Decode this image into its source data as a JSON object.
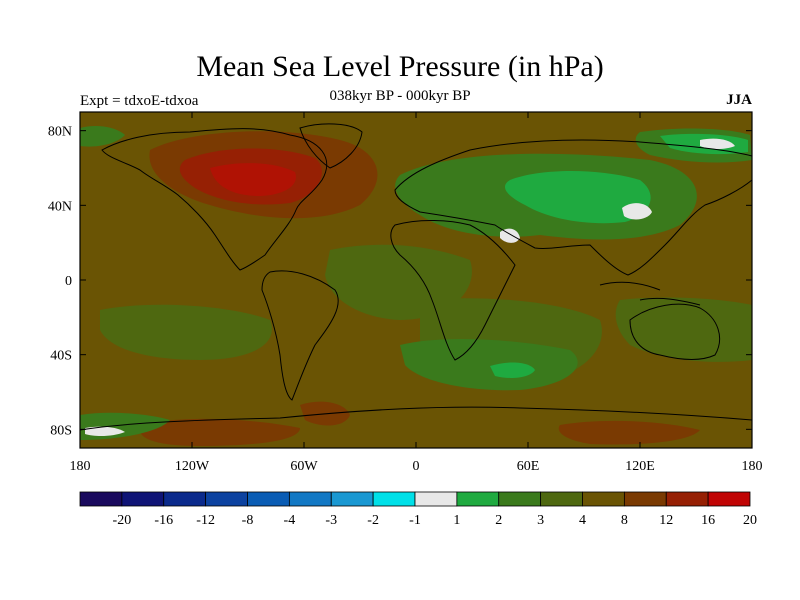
{
  "title": "Mean Sea Level Pressure (in hPa)",
  "subtitle": "038kyr BP - 000kyr BP",
  "experiment": "Expt = tdxoE-tdxoa",
  "season": "JJA",
  "map": {
    "lon_ticks": [
      "180",
      "120W",
      "60W",
      "0",
      "60E",
      "120E",
      "180"
    ],
    "lat_ticks": [
      "80N",
      "40N",
      "0",
      "40S",
      "80S"
    ],
    "lon_range": [
      -180,
      180
    ],
    "lat_range": [
      -90,
      90
    ],
    "background_class": "4 to 8"
  },
  "colorbar": {
    "labels": [
      "-20",
      "-16",
      "-12",
      "-8",
      "-4",
      "-3",
      "-2",
      "-1",
      "1",
      "2",
      "3",
      "4",
      "8",
      "12",
      "16",
      "20"
    ],
    "colors": [
      "#1a0a5e",
      "#0f1476",
      "#0b2a8c",
      "#0c42a0",
      "#0a5cb4",
      "#1278c4",
      "#1a98d2",
      "#00e0e8",
      "#e8e8e8",
      "#1faa40",
      "#3a7a1c",
      "#4e6810",
      "#6a5404",
      "#7a3a02",
      "#962004",
      "#c00404"
    ]
  }
}
